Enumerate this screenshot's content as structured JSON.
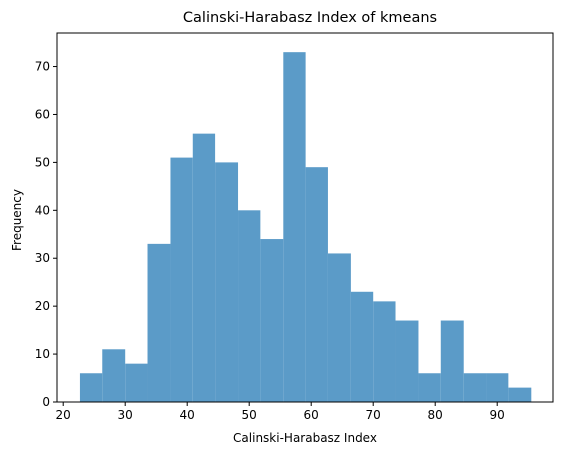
{
  "chart_data": {
    "type": "bar",
    "title": "Calinski-Harabasz Index of kmeans",
    "xlabel": "Calinski-Harabasz Index",
    "ylabel": "Frequency",
    "xlim": [
      19,
      99
    ],
    "ylim": [
      0,
      77
    ],
    "xticks": [
      20,
      30,
      40,
      50,
      60,
      70,
      80,
      90
    ],
    "yticks": [
      0,
      10,
      20,
      30,
      40,
      50,
      60,
      70
    ],
    "grid": false,
    "bar_color": "#5b9bc8",
    "bins": [
      {
        "start": 22.7,
        "end": 26.3,
        "count": 6
      },
      {
        "start": 26.3,
        "end": 30.0,
        "count": 11
      },
      {
        "start": 30.0,
        "end": 33.6,
        "count": 8
      },
      {
        "start": 33.6,
        "end": 37.3,
        "count": 33
      },
      {
        "start": 37.3,
        "end": 40.9,
        "count": 51
      },
      {
        "start": 40.9,
        "end": 44.5,
        "count": 56
      },
      {
        "start": 44.5,
        "end": 48.2,
        "count": 50
      },
      {
        "start": 48.2,
        "end": 51.8,
        "count": 40
      },
      {
        "start": 51.8,
        "end": 55.5,
        "count": 34
      },
      {
        "start": 55.5,
        "end": 59.1,
        "count": 73
      },
      {
        "start": 59.1,
        "end": 62.7,
        "count": 49
      },
      {
        "start": 62.7,
        "end": 66.4,
        "count": 31
      },
      {
        "start": 66.4,
        "end": 70.0,
        "count": 23
      },
      {
        "start": 70.0,
        "end": 73.6,
        "count": 21
      },
      {
        "start": 73.6,
        "end": 77.3,
        "count": 17
      },
      {
        "start": 77.3,
        "end": 80.9,
        "count": 6
      },
      {
        "start": 80.9,
        "end": 84.6,
        "count": 17
      },
      {
        "start": 84.6,
        "end": 88.2,
        "count": 6
      },
      {
        "start": 88.2,
        "end": 91.8,
        "count": 6
      },
      {
        "start": 91.8,
        "end": 95.5,
        "count": 3
      }
    ]
  }
}
